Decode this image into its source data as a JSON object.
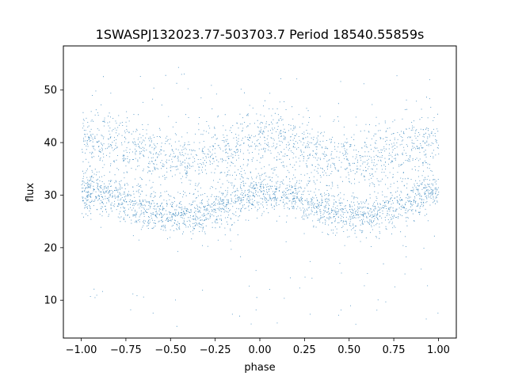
{
  "chart_data": {
    "type": "scatter",
    "title": "1SWASPJ132023.77-503703.7 Period 18540.55859s",
    "xlabel": "phase",
    "ylabel": "flux",
    "xlim": [
      -1.1,
      1.1
    ],
    "ylim": [
      2.8,
      58.4
    ],
    "xticks": [
      -1.0,
      -0.75,
      -0.5,
      -0.25,
      0.0,
      0.25,
      0.5,
      0.75,
      1.0
    ],
    "xtick_labels": [
      "−1.00",
      "−0.75",
      "−0.50",
      "−0.25",
      "0.00",
      "0.25",
      "0.50",
      "0.75",
      "1.00"
    ],
    "yticks": [
      10,
      20,
      30,
      40,
      50
    ],
    "ytick_labels": [
      "10",
      "20",
      "30",
      "40",
      "50"
    ],
    "grid": false,
    "point_color": "#1f77b4",
    "series": [
      {
        "name": "",
        "summary": {
          "phase_range": [
            -1.0,
            1.0
          ],
          "lower_band": {
            "mean_flux": 28.3,
            "amplitude": 2.2,
            "cycles_per_unit_phase": 1,
            "phase_of_maximum": 0.05,
            "spread": 2.0
          },
          "upper_band": {
            "mean_flux": 38.6,
            "amplitude": 2.0,
            "cycles_per_unit_phase": 1,
            "phase_of_maximum": 0.05,
            "spread": 3.0
          },
          "flux_range": [
            5,
            56
          ]
        },
        "x": [
          -1.0,
          -0.75,
          -0.5,
          -0.25,
          0.0,
          0.25,
          0.5,
          0.75,
          1.0
        ],
        "y_lower_band_center": [
          30.3,
          28.7,
          26.3,
          27.9,
          30.4,
          28.7,
          26.2,
          27.9,
          30.4
        ],
        "y_upper_band_center": [
          40.3,
          38.9,
          36.7,
          38.3,
          40.5,
          38.9,
          36.6,
          38.3,
          40.4
        ]
      }
    ]
  }
}
